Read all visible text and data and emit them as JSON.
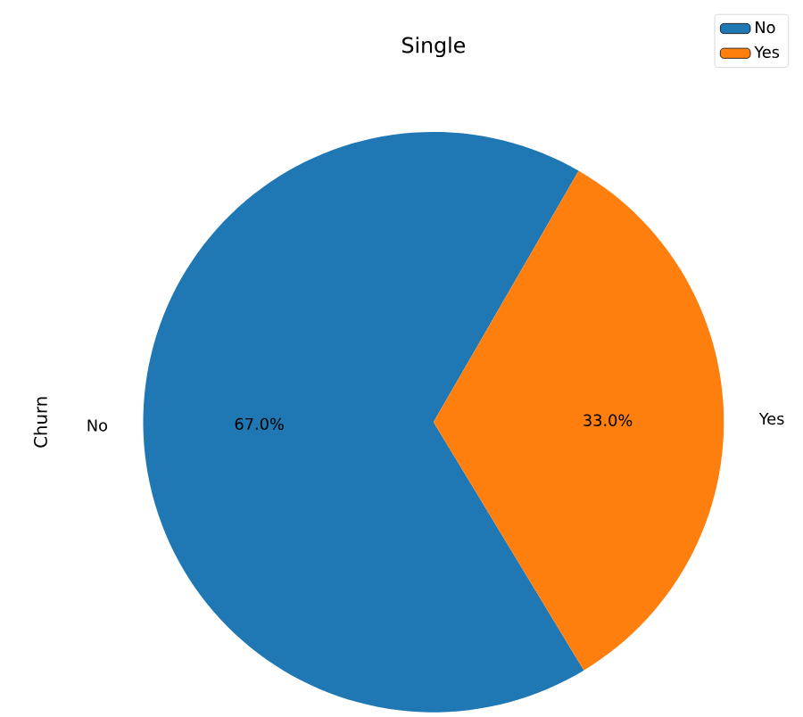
{
  "chart_data": {
    "type": "pie",
    "title": "Single",
    "ylabel": "Churn",
    "categories": [
      "No",
      "Yes"
    ],
    "values": [
      67.0,
      33.0
    ],
    "value_labels": [
      "67.0%",
      "33.0%"
    ],
    "colors": [
      "#1f77b4",
      "#ff7f0e"
    ],
    "legend": "top right"
  }
}
